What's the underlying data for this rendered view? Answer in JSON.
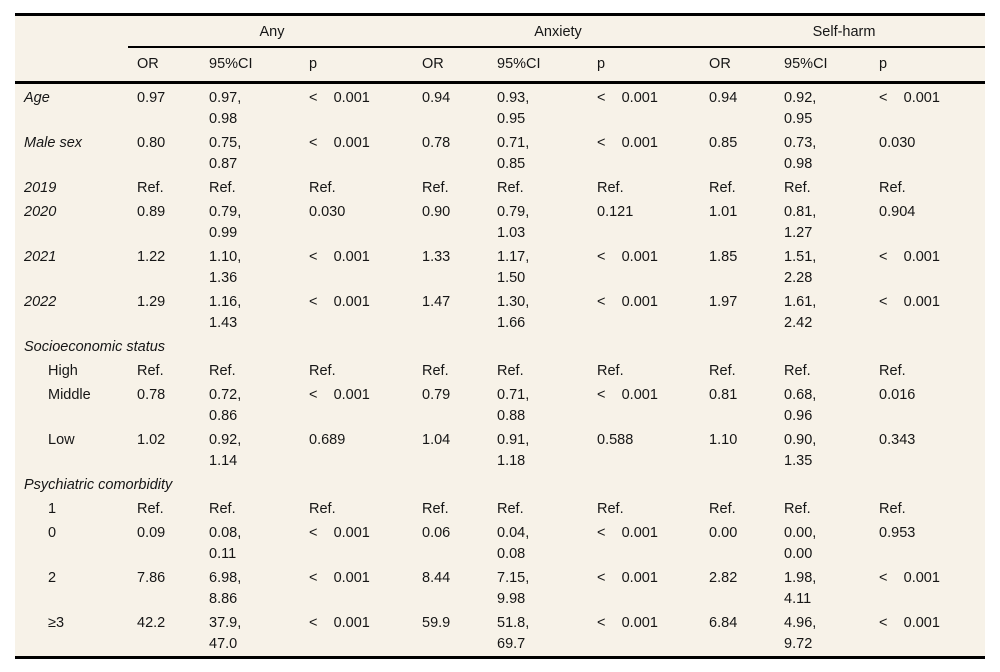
{
  "colors": {
    "page_background": "#ffffff",
    "table_background": "#f7f2e8",
    "border": "#000000",
    "text": "#161616"
  },
  "table": {
    "groups": [
      {
        "label": "Any"
      },
      {
        "label": "Anxiety"
      },
      {
        "label": "Self-harm"
      }
    ],
    "subheaders": [
      "OR",
      "95%CI",
      "p"
    ],
    "rows": [
      {
        "label": "Age",
        "kind": "variable",
        "cells": [
          "0.97",
          "0.97,\n0.98",
          "<    0.001",
          "0.94",
          "0.93,\n0.95",
          "<    0.001",
          "0.94",
          "0.92,\n0.95",
          "<    0.001"
        ]
      },
      {
        "label": "Male sex",
        "kind": "variable",
        "cells": [
          "0.80",
          "0.75,\n0.87",
          "<    0.001",
          "0.78",
          "0.71,\n0.85",
          "<    0.001",
          "0.85",
          "0.73,\n0.98",
          "0.030"
        ]
      },
      {
        "label": "2019",
        "kind": "variable",
        "cells": [
          "Ref.",
          "Ref.",
          "Ref.",
          "Ref.",
          "Ref.",
          "Ref.",
          "Ref.",
          "Ref.",
          "Ref."
        ]
      },
      {
        "label": "2020",
        "kind": "variable",
        "cells": [
          "0.89",
          "0.79,\n0.99",
          "0.030",
          "0.90",
          "0.79,\n1.03",
          "0.121",
          "1.01",
          "0.81,\n1.27",
          "0.904"
        ]
      },
      {
        "label": "2021",
        "kind": "variable",
        "cells": [
          "1.22",
          "1.10,\n1.36",
          "<    0.001",
          "1.33",
          "1.17,\n1.50",
          "<    0.001",
          "1.85",
          "1.51,\n2.28",
          "<    0.001"
        ]
      },
      {
        "label": "2022",
        "kind": "variable",
        "cells": [
          "1.29",
          "1.16,\n1.43",
          "<    0.001",
          "1.47",
          "1.30,\n1.66",
          "<    0.001",
          "1.97",
          "1.61,\n2.42",
          "<    0.001"
        ]
      },
      {
        "label": "Socioeconomic status",
        "kind": "section",
        "cells": []
      },
      {
        "label": "High",
        "kind": "level",
        "cells": [
          "Ref.",
          "Ref.",
          "Ref.",
          "Ref.",
          "Ref.",
          "Ref.",
          "Ref.",
          "Ref.",
          "Ref."
        ]
      },
      {
        "label": "Middle",
        "kind": "level",
        "cells": [
          "0.78",
          "0.72,\n0.86",
          "<    0.001",
          "0.79",
          "0.71,\n0.88",
          "<    0.001",
          "0.81",
          "0.68,\n0.96",
          "0.016"
        ]
      },
      {
        "label": "Low",
        "kind": "level",
        "cells": [
          "1.02",
          "0.92,\n1.14",
          "0.689",
          "1.04",
          "0.91,\n1.18",
          "0.588",
          "1.10",
          "0.90,\n1.35",
          "0.343"
        ]
      },
      {
        "label": "Psychiatric comorbidity",
        "kind": "section",
        "cells": []
      },
      {
        "label": "1",
        "kind": "level",
        "cells": [
          "Ref.",
          "Ref.",
          "Ref.",
          "Ref.",
          "Ref.",
          "Ref.",
          "Ref.",
          "Ref.",
          "Ref."
        ]
      },
      {
        "label": "0",
        "kind": "level",
        "cells": [
          "0.09",
          "0.08,\n0.11",
          "<    0.001",
          "0.06",
          "0.04,\n0.08",
          "<    0.001",
          "0.00",
          "0.00,\n0.00",
          "0.953"
        ]
      },
      {
        "label": "2",
        "kind": "level",
        "cells": [
          "7.86",
          "6.98,\n8.86",
          "<    0.001",
          "8.44",
          "7.15,\n9.98",
          "<    0.001",
          "2.82",
          "1.98,\n4.11",
          "<    0.001"
        ]
      },
      {
        "label": "≥3",
        "kind": "level",
        "cells": [
          "42.2",
          "37.9,\n47.0",
          "<    0.001",
          "59.9",
          "51.8,\n69.7",
          "<    0.001",
          "6.84",
          "4.96,\n9.72",
          "<    0.001"
        ]
      }
    ]
  }
}
